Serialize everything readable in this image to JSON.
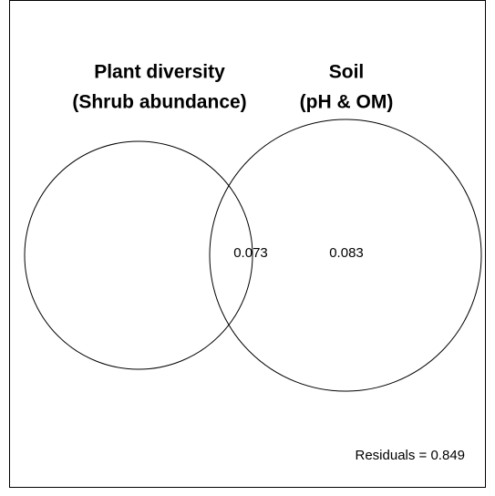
{
  "sets": [
    {
      "title": "Plant diversity",
      "subtitle": "(Shrub abundance)"
    },
    {
      "title": "Soil",
      "subtitle": "(pH & OM)"
    }
  ],
  "regions": {
    "intersection": 0.073,
    "soil_only": 0.083
  },
  "residuals": "Residuals = 0.849"
}
